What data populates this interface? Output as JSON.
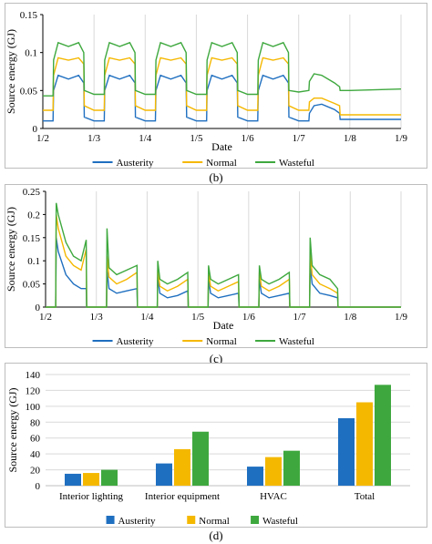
{
  "panels": [
    {
      "label": "(b)"
    },
    {
      "label": "(c)"
    },
    {
      "label": "(d)"
    }
  ],
  "chart_data": [
    {
      "type": "line",
      "panel": "(b)",
      "xlabel": "Date",
      "ylabel": "Source energy (GJ)",
      "x_ticks": [
        "1/2",
        "1/3",
        "1/4",
        "1/5",
        "1/6",
        "1/7",
        "1/8",
        "1/9"
      ],
      "xlim": [
        0,
        7
      ],
      "ylim": [
        0,
        0.15
      ],
      "y_ticks": [
        0,
        0.05,
        0.1,
        0.15
      ],
      "y_tick_labels": [
        "0",
        "0.05",
        "0.1",
        "0.15"
      ],
      "grid": "vertical",
      "legend": "bottom",
      "x_unit": "days after 1/2",
      "series": [
        {
          "name": "Austerity",
          "color": "#1f6fc0",
          "x": [
            0,
            0.2,
            0.21,
            0.3,
            0.5,
            0.7,
            0.8,
            0.81,
            1.0,
            1.2,
            1.21,
            1.3,
            1.5,
            1.7,
            1.8,
            1.81,
            2.0,
            2.2,
            2.21,
            2.3,
            2.5,
            2.7,
            2.8,
            2.81,
            3.0,
            3.2,
            3.21,
            3.3,
            3.5,
            3.7,
            3.8,
            3.81,
            4.0,
            4.2,
            4.21,
            4.3,
            4.5,
            4.7,
            4.8,
            4.81,
            5.0,
            5.2,
            5.21,
            5.3,
            5.45,
            5.7,
            5.8,
            5.81,
            6.0,
            7.0
          ],
          "y": [
            0.01,
            0.01,
            0.05,
            0.07,
            0.065,
            0.07,
            0.06,
            0.015,
            0.01,
            0.01,
            0.05,
            0.07,
            0.065,
            0.07,
            0.06,
            0.015,
            0.01,
            0.01,
            0.05,
            0.07,
            0.065,
            0.07,
            0.06,
            0.015,
            0.01,
            0.01,
            0.05,
            0.07,
            0.065,
            0.07,
            0.06,
            0.015,
            0.01,
            0.01,
            0.05,
            0.07,
            0.065,
            0.07,
            0.06,
            0.015,
            0.01,
            0.01,
            0.02,
            0.03,
            0.032,
            0.025,
            0.02,
            0.012,
            0.012,
            0.012
          ]
        },
        {
          "name": "Normal",
          "color": "#f5b800",
          "x": [
            0,
            0.2,
            0.21,
            0.3,
            0.5,
            0.7,
            0.8,
            0.81,
            1.0,
            1.2,
            1.21,
            1.3,
            1.5,
            1.7,
            1.8,
            1.81,
            2.0,
            2.2,
            2.21,
            2.3,
            2.5,
            2.7,
            2.8,
            2.81,
            3.0,
            3.2,
            3.21,
            3.3,
            3.5,
            3.7,
            3.8,
            3.81,
            4.0,
            4.2,
            4.21,
            4.3,
            4.5,
            4.7,
            4.8,
            4.81,
            5.0,
            5.2,
            5.21,
            5.3,
            5.45,
            5.7,
            5.8,
            5.81,
            6.0,
            7.0
          ],
          "y": [
            0.024,
            0.024,
            0.07,
            0.093,
            0.09,
            0.093,
            0.085,
            0.03,
            0.024,
            0.024,
            0.07,
            0.093,
            0.09,
            0.093,
            0.085,
            0.03,
            0.024,
            0.024,
            0.07,
            0.093,
            0.09,
            0.093,
            0.085,
            0.03,
            0.024,
            0.024,
            0.07,
            0.093,
            0.09,
            0.093,
            0.085,
            0.03,
            0.024,
            0.024,
            0.07,
            0.093,
            0.09,
            0.093,
            0.085,
            0.03,
            0.024,
            0.024,
            0.035,
            0.04,
            0.04,
            0.033,
            0.03,
            0.018,
            0.018,
            0.018
          ]
        },
        {
          "name": "Wasteful",
          "color": "#3ea83e",
          "x": [
            0,
            0.2,
            0.21,
            0.3,
            0.5,
            0.7,
            0.8,
            0.81,
            1.0,
            1.2,
            1.21,
            1.3,
            1.5,
            1.7,
            1.8,
            1.81,
            2.0,
            2.2,
            2.21,
            2.3,
            2.5,
            2.7,
            2.8,
            2.81,
            3.0,
            3.2,
            3.21,
            3.3,
            3.5,
            3.7,
            3.8,
            3.81,
            4.0,
            4.2,
            4.21,
            4.3,
            4.5,
            4.7,
            4.8,
            4.81,
            5.0,
            5.2,
            5.21,
            5.3,
            5.45,
            5.7,
            5.8,
            5.81,
            6.0,
            7.0
          ],
          "y": [
            0.043,
            0.043,
            0.09,
            0.113,
            0.108,
            0.113,
            0.1,
            0.05,
            0.045,
            0.045,
            0.09,
            0.113,
            0.108,
            0.113,
            0.1,
            0.05,
            0.045,
            0.045,
            0.09,
            0.113,
            0.108,
            0.113,
            0.1,
            0.05,
            0.045,
            0.045,
            0.09,
            0.113,
            0.108,
            0.113,
            0.1,
            0.05,
            0.045,
            0.045,
            0.09,
            0.113,
            0.108,
            0.113,
            0.1,
            0.05,
            0.048,
            0.05,
            0.062,
            0.072,
            0.07,
            0.06,
            0.055,
            0.05,
            0.05,
            0.052
          ]
        }
      ]
    },
    {
      "type": "line",
      "panel": "(c)",
      "xlabel": "Date",
      "ylabel": "Source energy (GJ)",
      "x_ticks": [
        "1/2",
        "1/3",
        "1/4",
        "1/5",
        "1/6",
        "1/7",
        "1/8",
        "1/9"
      ],
      "xlim": [
        0,
        7
      ],
      "ylim": [
        0,
        0.25
      ],
      "y_ticks": [
        0,
        0.05,
        0.1,
        0.15,
        0.2,
        0.25
      ],
      "y_tick_labels": [
        "0",
        "0.05",
        "0.1",
        "0.15",
        "0.2",
        "0.25"
      ],
      "grid": "vertical",
      "legend": "bottom",
      "x_unit": "days after 1/2",
      "series": [
        {
          "name": "Austerity",
          "color": "#1f6fc0",
          "x": [
            0,
            0.2,
            0.21,
            0.25,
            0.4,
            0.55,
            0.7,
            0.8,
            0.81,
            1.2,
            1.21,
            1.25,
            1.4,
            1.6,
            1.8,
            1.81,
            2.2,
            2.21,
            2.25,
            2.4,
            2.6,
            2.8,
            2.81,
            3.2,
            3.21,
            3.25,
            3.4,
            3.6,
            3.8,
            3.81,
            4.2,
            4.21,
            4.25,
            4.4,
            4.6,
            4.8,
            4.81,
            5.2,
            5.21,
            5.25,
            5.4,
            5.6,
            5.75,
            5.76,
            6.0,
            7.0
          ],
          "y": [
            0,
            0,
            0.15,
            0.12,
            0.07,
            0.05,
            0.04,
            0.04,
            0,
            0,
            0.08,
            0.04,
            0.03,
            0.035,
            0.04,
            0,
            0,
            0.065,
            0.03,
            0.02,
            0.025,
            0.035,
            0,
            0,
            0.06,
            0.03,
            0.02,
            0.025,
            0.03,
            0,
            0,
            0.06,
            0.03,
            0.02,
            0.025,
            0.03,
            0,
            0,
            0.09,
            0.05,
            0.03,
            0.025,
            0.02,
            0,
            0,
            0
          ]
        },
        {
          "name": "Normal",
          "color": "#f5b800",
          "x": [
            0,
            0.2,
            0.21,
            0.25,
            0.4,
            0.55,
            0.7,
            0.8,
            0.81,
            1.2,
            1.21,
            1.25,
            1.4,
            1.6,
            1.8,
            1.81,
            2.2,
            2.21,
            2.25,
            2.4,
            2.6,
            2.8,
            2.81,
            3.2,
            3.21,
            3.25,
            3.4,
            3.6,
            3.8,
            3.81,
            4.2,
            4.21,
            4.25,
            4.4,
            4.6,
            4.8,
            4.81,
            5.2,
            5.21,
            5.25,
            5.4,
            5.6,
            5.75,
            5.76,
            6.0,
            7.0
          ],
          "y": [
            0,
            0,
            0.2,
            0.17,
            0.11,
            0.09,
            0.08,
            0.125,
            0,
            0,
            0.11,
            0.065,
            0.05,
            0.06,
            0.075,
            0,
            0,
            0.08,
            0.045,
            0.035,
            0.045,
            0.06,
            0,
            0,
            0.075,
            0.045,
            0.035,
            0.045,
            0.055,
            0,
            0,
            0.075,
            0.045,
            0.035,
            0.045,
            0.06,
            0,
            0,
            0.12,
            0.07,
            0.05,
            0.04,
            0.03,
            0,
            0,
            0
          ]
        },
        {
          "name": "Wasteful",
          "color": "#3ea83e",
          "x": [
            0,
            0.2,
            0.21,
            0.25,
            0.4,
            0.55,
            0.7,
            0.8,
            0.81,
            1.2,
            1.21,
            1.25,
            1.4,
            1.6,
            1.8,
            1.81,
            2.2,
            2.21,
            2.25,
            2.4,
            2.6,
            2.8,
            2.81,
            3.2,
            3.21,
            3.25,
            3.4,
            3.6,
            3.8,
            3.81,
            4.2,
            4.21,
            4.25,
            4.4,
            4.6,
            4.8,
            4.81,
            5.2,
            5.21,
            5.25,
            5.4,
            5.6,
            5.75,
            5.76,
            6.0,
            7.0
          ],
          "y": [
            0,
            0,
            0.225,
            0.2,
            0.14,
            0.11,
            0.1,
            0.145,
            0,
            0,
            0.17,
            0.085,
            0.07,
            0.08,
            0.09,
            0,
            0,
            0.1,
            0.06,
            0.05,
            0.06,
            0.075,
            0,
            0,
            0.09,
            0.06,
            0.05,
            0.06,
            0.07,
            0,
            0,
            0.09,
            0.06,
            0.05,
            0.06,
            0.075,
            0,
            0,
            0.15,
            0.09,
            0.07,
            0.06,
            0.04,
            0,
            0,
            0
          ]
        }
      ]
    },
    {
      "type": "bar",
      "panel": "(d)",
      "categories": [
        "Interior lighting",
        "Interior equipment",
        "HVAC",
        "Total"
      ],
      "ylabel": "Source energy (GJ)",
      "ylim": [
        0,
        140
      ],
      "y_ticks": [
        0,
        20,
        40,
        60,
        80,
        100,
        120,
        140
      ],
      "grid": "horizontal",
      "legend": "bottom",
      "series": [
        {
          "name": "Austerity",
          "color": "#1f6fc0",
          "values": [
            15,
            28,
            24,
            85
          ]
        },
        {
          "name": "Normal",
          "color": "#f5b800",
          "values": [
            16,
            46,
            36,
            105
          ]
        },
        {
          "name": "Wasteful",
          "color": "#3ea83e",
          "values": [
            20,
            68,
            44,
            127
          ]
        }
      ]
    }
  ]
}
